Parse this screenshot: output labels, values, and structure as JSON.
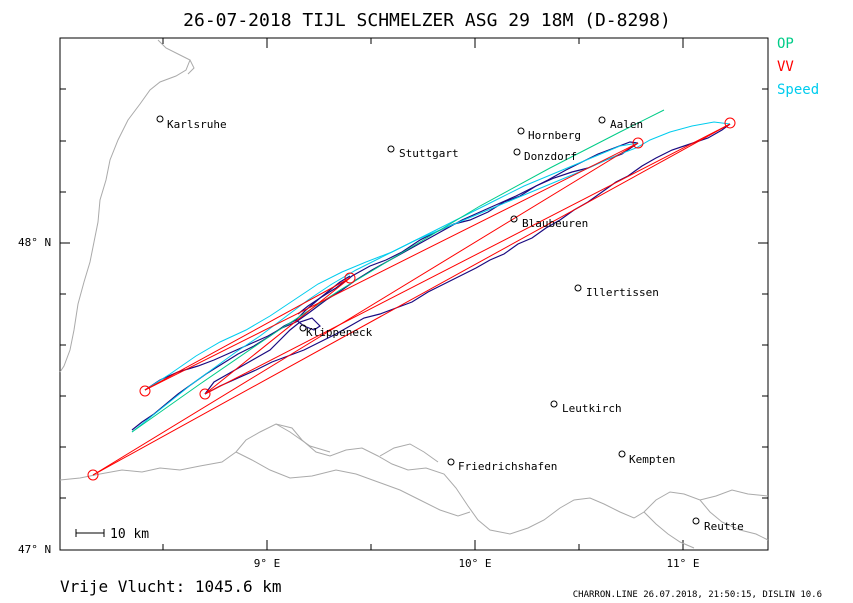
{
  "title": "26-07-2018    TIJL SCHMELZER    ASG 29 18M (D-8298)",
  "legend": [
    {
      "label": "OP",
      "color": "#00cc88"
    },
    {
      "label": "VV",
      "color": "#ff0000"
    },
    {
      "label": "Speed",
      "color": "#00ccee"
    }
  ],
  "axis": {
    "lat_labels": [
      "48° N",
      "47° N"
    ],
    "lon_labels": [
      "9° E",
      "10° E",
      "11° E"
    ]
  },
  "cities": [
    {
      "name": "Karlsruhe"
    },
    {
      "name": "Stuttgart"
    },
    {
      "name": "Hornberg"
    },
    {
      "name": "Aalen"
    },
    {
      "name": "Donzdorf"
    },
    {
      "name": "Blaubeuren"
    },
    {
      "name": "Illertissen"
    },
    {
      "name": "Klippeneck"
    },
    {
      "name": "Leutkirch"
    },
    {
      "name": "Kempten"
    },
    {
      "name": "Friedrichshafen"
    },
    {
      "name": "Reutte"
    }
  ],
  "scale_bar": {
    "label": "10 km"
  },
  "distance_text": "Vrije Vlucht: 1045.6 km",
  "footer": "CHARRON.LINE 26.07.2018, 21:50:15, DISLIN 10.6",
  "colors": {
    "track": "#1a0a80",
    "speed": "#00ccee",
    "op": "#00cc88",
    "vv": "#ff0000",
    "terrain": "#aaaaaa"
  }
}
